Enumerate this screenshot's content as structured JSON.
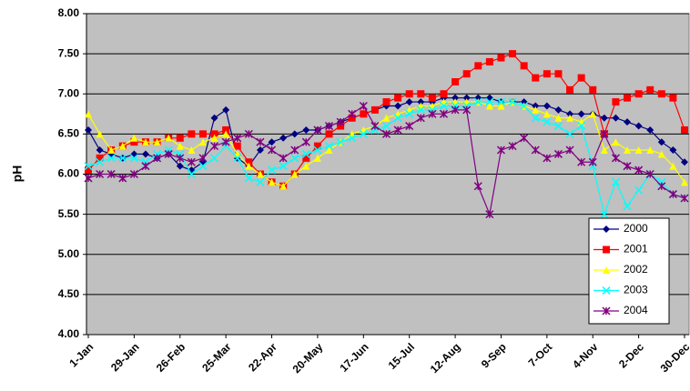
{
  "chart_data": {
    "type": "line",
    "y_label": "pH",
    "categories": [
      "1-Jan",
      null,
      null,
      null,
      "29-Jan",
      null,
      null,
      null,
      "26-Feb",
      null,
      null,
      null,
      "25-Mar",
      null,
      null,
      null,
      "22-Apr",
      null,
      null,
      null,
      "20-May",
      null,
      null,
      null,
      "17-Jun",
      null,
      null,
      null,
      "15-Jul",
      null,
      null,
      null,
      "12-Aug",
      null,
      null,
      null,
      "9-Sep",
      null,
      null,
      null,
      "7-Oct",
      null,
      null,
      null,
      "4-Nov",
      null,
      null,
      null,
      "2-Dec",
      null,
      null,
      null,
      "30-Dec"
    ],
    "ylim": [
      4,
      8
    ],
    "yticks": [
      {
        "value": 4,
        "label": "4.00"
      },
      {
        "value": 4.5,
        "label": "4.50"
      },
      {
        "value": 5,
        "label": "5.00"
      },
      {
        "value": 5.5,
        "label": "5.50"
      },
      {
        "value": 6,
        "label": "6.00"
      },
      {
        "value": 6.5,
        "label": "6.50"
      },
      {
        "value": 7,
        "label": "7.00"
      },
      {
        "value": 7.5,
        "label": "7.50"
      },
      {
        "value": 8,
        "label": "8.00"
      }
    ],
    "grid": true,
    "legend": "lower right",
    "series": [
      {
        "name": "2000",
        "color": "#000080",
        "marker": "diamond",
        "values": [
          6.55,
          6.3,
          6.25,
          6.2,
          6.25,
          6.25,
          6.2,
          6.25,
          6.1,
          6.05,
          6.15,
          6.7,
          6.8,
          6.2,
          6.1,
          6.3,
          6.4,
          6.45,
          6.5,
          6.55,
          6.55,
          6.6,
          6.65,
          6.7,
          6.75,
          6.8,
          6.85,
          6.85,
          6.9,
          6.9,
          6.9,
          6.95,
          6.95,
          6.95,
          6.95,
          6.95,
          6.9,
          6.9,
          6.9,
          6.85,
          6.85,
          6.8,
          6.75,
          6.75,
          6.75,
          6.7,
          6.7,
          6.65,
          6.6,
          6.55,
          6.4,
          6.3,
          6.15
        ]
      },
      {
        "name": "2001",
        "color": "#ff0000",
        "marker": "square",
        "values": [
          6.05,
          6.2,
          6.3,
          6.35,
          6.4,
          6.4,
          6.4,
          6.45,
          6.45,
          6.5,
          6.5,
          6.5,
          6.55,
          6.35,
          6.15,
          6.0,
          5.9,
          5.85,
          6.0,
          6.2,
          6.35,
          6.5,
          6.6,
          6.7,
          6.75,
          6.8,
          6.9,
          6.95,
          7.0,
          7.0,
          6.95,
          7.0,
          7.15,
          7.25,
          7.35,
          7.4,
          7.45,
          7.5,
          7.35,
          7.2,
          7.25,
          7.25,
          7.05,
          7.2,
          7.05,
          6.5,
          6.9,
          6.95,
          7.0,
          7.05,
          7.0,
          6.95,
          6.55
        ]
      },
      {
        "name": "2002",
        "color": "#ffff00",
        "marker": "triangle",
        "values": [
          6.75,
          6.5,
          6.3,
          6.35,
          6.45,
          6.4,
          6.4,
          6.45,
          6.35,
          6.3,
          6.4,
          6.45,
          6.5,
          6.25,
          6.1,
          6.0,
          5.9,
          5.85,
          6.0,
          6.1,
          6.2,
          6.3,
          6.4,
          6.5,
          6.55,
          6.6,
          6.7,
          6.75,
          6.8,
          6.85,
          6.85,
          6.9,
          6.9,
          6.9,
          6.9,
          6.85,
          6.85,
          6.9,
          6.85,
          6.8,
          6.75,
          6.7,
          6.7,
          6.65,
          6.75,
          6.3,
          6.4,
          6.3,
          6.3,
          6.3,
          6.25,
          6.1,
          5.9
        ]
      },
      {
        "name": "2003",
        "color": "#00ffff",
        "marker": "x",
        "values": [
          6.1,
          6.15,
          6.2,
          6.2,
          6.2,
          6.15,
          6.25,
          6.3,
          6.25,
          6.0,
          6.1,
          6.2,
          6.35,
          6.2,
          5.95,
          5.9,
          6.05,
          6.1,
          6.2,
          6.25,
          6.3,
          6.35,
          6.4,
          6.45,
          6.5,
          6.55,
          6.6,
          6.7,
          6.75,
          6.8,
          6.8,
          6.85,
          6.85,
          6.85,
          6.9,
          6.9,
          6.9,
          6.9,
          6.85,
          6.7,
          6.65,
          6.6,
          6.5,
          6.6,
          6.1,
          5.5,
          5.9,
          5.6,
          5.8,
          6.0,
          5.9,
          5.75,
          5.7
        ]
      },
      {
        "name": "2004",
        "color": "#800080",
        "marker": "asterisk",
        "values": [
          5.95,
          6.0,
          6.0,
          5.95,
          6.0,
          6.1,
          6.2,
          6.25,
          6.2,
          6.15,
          6.2,
          6.35,
          6.4,
          6.45,
          6.5,
          6.4,
          6.3,
          6.2,
          6.3,
          6.4,
          6.55,
          6.6,
          6.65,
          6.75,
          6.85,
          6.6,
          6.5,
          6.55,
          6.6,
          6.7,
          6.75,
          6.75,
          6.8,
          6.8,
          5.85,
          5.5,
          6.3,
          6.35,
          6.45,
          6.3,
          6.2,
          6.25,
          6.3,
          6.15,
          6.15,
          6.5,
          6.2,
          6.1,
          6.05,
          6.0,
          5.85,
          5.75,
          5.7
        ]
      }
    ]
  }
}
